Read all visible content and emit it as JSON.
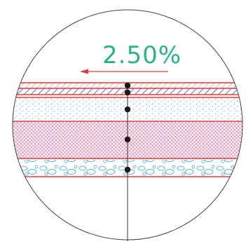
{
  "detail": {
    "slope_label": "2.50%",
    "colors": {
      "outline": "#444444",
      "membrane_line": "#e23a3a",
      "slope_text": "#2ab38a",
      "slope_arrow": "#e23a3a",
      "bolt": "#1a1a1a"
    },
    "layers": [
      {
        "name": "top-membrane",
        "pattern": "red-hatch"
      },
      {
        "name": "insulation-board",
        "pattern": "blue-diagonal-hatch"
      },
      {
        "name": "lightweight-concrete",
        "pattern": "blue-dots"
      },
      {
        "name": "screed",
        "pattern": "pink-crosshatch"
      },
      {
        "name": "gravel-bed",
        "pattern": "blue-pebbles"
      }
    ],
    "icons": {
      "arrow": "arrow-left-icon",
      "bolt": "anchor-bolt-icon"
    }
  }
}
